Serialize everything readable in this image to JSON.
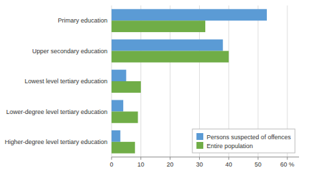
{
  "chart_data": {
    "type": "bar",
    "orientation": "horizontal",
    "categories": [
      "Primary education",
      "Upper secondary education",
      "Lowest level tertiary education",
      "Lower-degree level tertiary education",
      "Higher-degree level tertiary education"
    ],
    "series": [
      {
        "name": "Persons suspected of offences",
        "color": "#5b9bd5",
        "values": [
          53,
          38,
          5,
          4,
          3
        ]
      },
      {
        "name": "Entire population",
        "color": "#70ad47",
        "values": [
          32,
          40,
          10,
          9,
          8
        ]
      }
    ],
    "xlim": [
      0,
      64
    ],
    "xticks": [
      0,
      10,
      20,
      30,
      40,
      50,
      {
        "value": 60,
        "label": "60 %"
      }
    ],
    "grid": true,
    "legend": "lower right"
  }
}
